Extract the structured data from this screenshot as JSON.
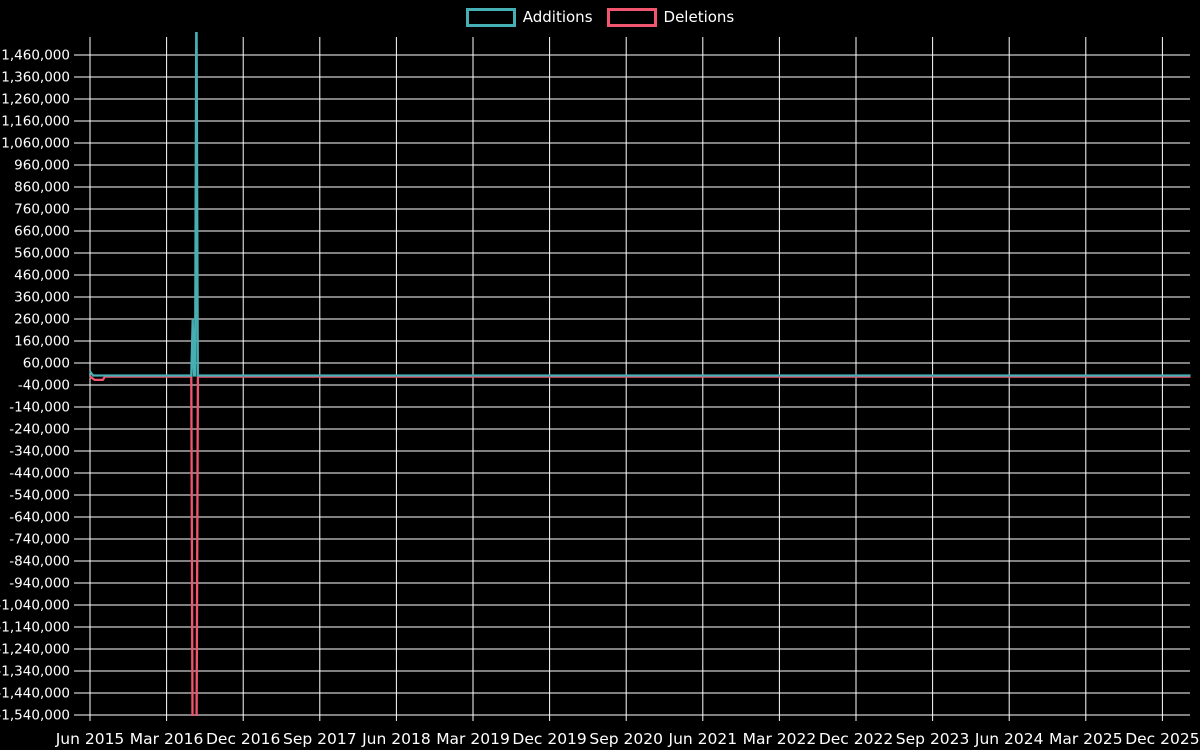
{
  "background": "#000000",
  "legend": {
    "items": [
      {
        "label": "Additions",
        "color": "#46afb4"
      },
      {
        "label": "Deletions",
        "color": "#f2556e"
      }
    ]
  },
  "chart_data": {
    "type": "line",
    "title": "",
    "xlabel": "",
    "ylabel": "",
    "grid": true,
    "grid_color": "#ffffff",
    "legend_position": "top-center",
    "x_axis": {
      "start": "Jun 2015",
      "end": "Dec 2025",
      "months_per_tick": 9,
      "tick_labels": [
        "Jun 2015",
        "Mar 2016",
        "Dec 2016",
        "Sep 2017",
        "Jun 2018",
        "Mar 2019",
        "Dec 2019",
        "Sep 2020",
        "Jun 2021",
        "Mar 2022",
        "Dec 2022",
        "Sep 2023",
        "Jun 2024",
        "Mar 2025",
        "Dec 2025"
      ]
    },
    "y_axis": {
      "min": -1540000,
      "max": 1560000,
      "tick_step": 100000,
      "ticks": [
        1460000,
        1360000,
        1260000,
        1160000,
        1060000,
        960000,
        860000,
        760000,
        660000,
        560000,
        460000,
        360000,
        260000,
        160000,
        60000,
        -40000,
        -140000,
        -240000,
        -340000,
        -440000,
        -540000,
        -640000,
        -740000,
        -840000,
        -940000,
        -1040000,
        -1140000,
        -1240000,
        -1340000,
        -1440000,
        -1540000
      ]
    },
    "clip_note": "Both series spike near Jun 2016 beyond the visible axis range; spikes are clipped at the plot edges (above +1,540,000 and below -1,540,000).",
    "series": [
      {
        "name": "Additions",
        "color": "#46afb4",
        "spike_x": "Jun 2016",
        "points_months_value": [
          [
            0,
            22000
          ],
          [
            0.35,
            3000
          ],
          [
            11.9,
            3000
          ],
          [
            12.07,
            260000
          ],
          [
            12.22,
            3000
          ],
          [
            12.35,
            3000
          ],
          [
            12.5,
            1800000
          ],
          [
            12.66,
            3000
          ],
          [
            60,
            3000
          ],
          [
            129.3,
            3000
          ]
        ]
      },
      {
        "name": "Deletions",
        "color": "#f2556e",
        "spike_x": "Jun 2016",
        "points_months_value": [
          [
            0,
            -2000
          ],
          [
            0.55,
            -17000
          ],
          [
            1.5,
            -17000
          ],
          [
            1.75,
            -2000
          ],
          [
            11.9,
            -2000
          ],
          [
            12.07,
            -1800000
          ],
          [
            12.5,
            -1800000
          ],
          [
            12.68,
            -2000
          ],
          [
            60,
            -2000
          ],
          [
            129.3,
            -2000
          ]
        ]
      }
    ]
  }
}
